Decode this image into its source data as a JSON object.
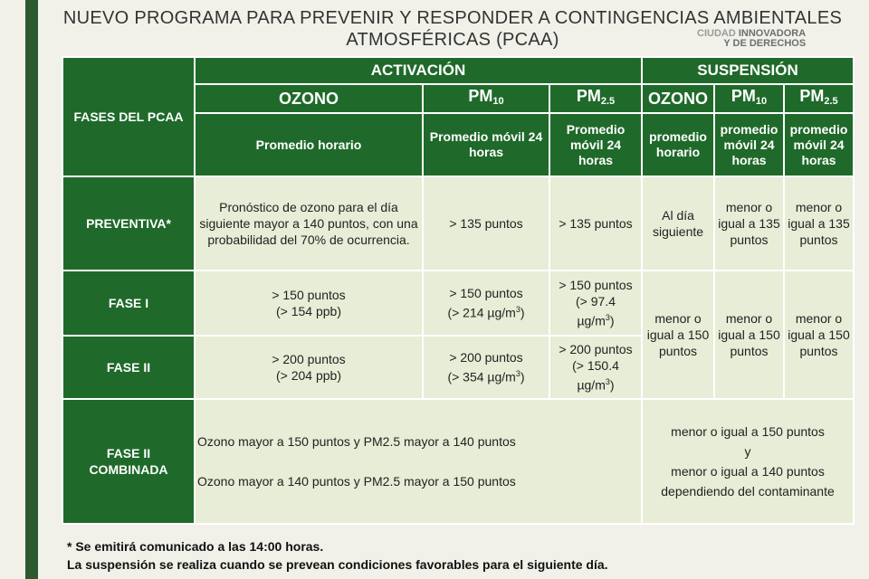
{
  "title": {
    "line1": "NUEVO PROGRAMA PARA PREVENIR Y RESPONDER A CONTINGENCIAS AMBIENTALES",
    "line2": "ATMOSFÉRICAS (PCAA)"
  },
  "logo": {
    "line1_a": "CIUDAD ",
    "line1_b": "INNOVADORA",
    "line2": "Y DE DERECHOS"
  },
  "table": {
    "corner": "FASES DEL PCAA",
    "activation": "ACTIVACIÓN",
    "suspension": "SUSPENSIÓN",
    "pollutants": {
      "ozono": "OZONO",
      "pm10_base": "PM",
      "pm10_sub": "10",
      "pm25_base": "PM",
      "pm25_sub": "2.5"
    },
    "metrics": {
      "act_ozono": "Promedio horario",
      "act_pm10": "Promedio móvil 24 horas",
      "act_pm25": "Promedio móvil 24 horas",
      "sus_ozono": "promedio horario",
      "sus_pm10": "promedio móvil 24 horas",
      "sus_pm25": "promedio móvil 24 horas"
    },
    "rows": {
      "preventiva": {
        "label": "PREVENTIVA*",
        "act_ozono": "Pronóstico de ozono para el día siguiente mayor a 140 puntos, con una probabilidad del 70% de ocurrencia.",
        "act_pm10": "> 135 puntos",
        "act_pm25": "> 135 puntos",
        "sus_ozono": "Al día siguiente",
        "sus_pm10": "menor o igual a 135 puntos",
        "sus_pm25": "menor o igual a 135 puntos"
      },
      "fase1": {
        "label": "FASE I",
        "act_ozono_a": "> 150 puntos",
        "act_ozono_b": "(> 154 ppb)",
        "act_pm10_a": "> 150 puntos",
        "act_pm10_b": "(> 214 µg/m",
        "act_pm25_a": "> 150 puntos",
        "act_pm25_b": "(> 97.4",
        "act_pm25_c": "µg/m",
        "cubed": "3",
        "close": ")"
      },
      "fase2": {
        "label": "FASE II",
        "act_ozono_a": "> 200 puntos",
        "act_ozono_b": "(> 204 ppb)",
        "act_pm10_a": "> 200 puntos",
        "act_pm10_b": "(> 354 µg/m",
        "act_pm25_a": "> 200 puntos",
        "act_pm25_b": "(> 150.4",
        "act_pm25_c": "µg/m"
      },
      "suspension_f1_f2": "menor o igual a 150 puntos",
      "combinada": {
        "label": "FASE II COMBINADA",
        "act_line1": "Ozono mayor a 150 puntos y PM2.5 mayor a 140 puntos",
        "act_line2": "Ozono mayor a 140 puntos y PM2.5 mayor a 150 puntos",
        "sus_line1": "menor o igual a  150 puntos",
        "sus_line2": "y",
        "sus_line3": "menor o igual a 140 puntos",
        "sus_line4": "dependiendo del contaminante"
      }
    }
  },
  "notes": {
    "line1": "* Se emitirá comunicado a las 14:00 horas.",
    "line2": "La suspensión se realiza cuando se prevean condiciones favorables para el siguiente día."
  }
}
